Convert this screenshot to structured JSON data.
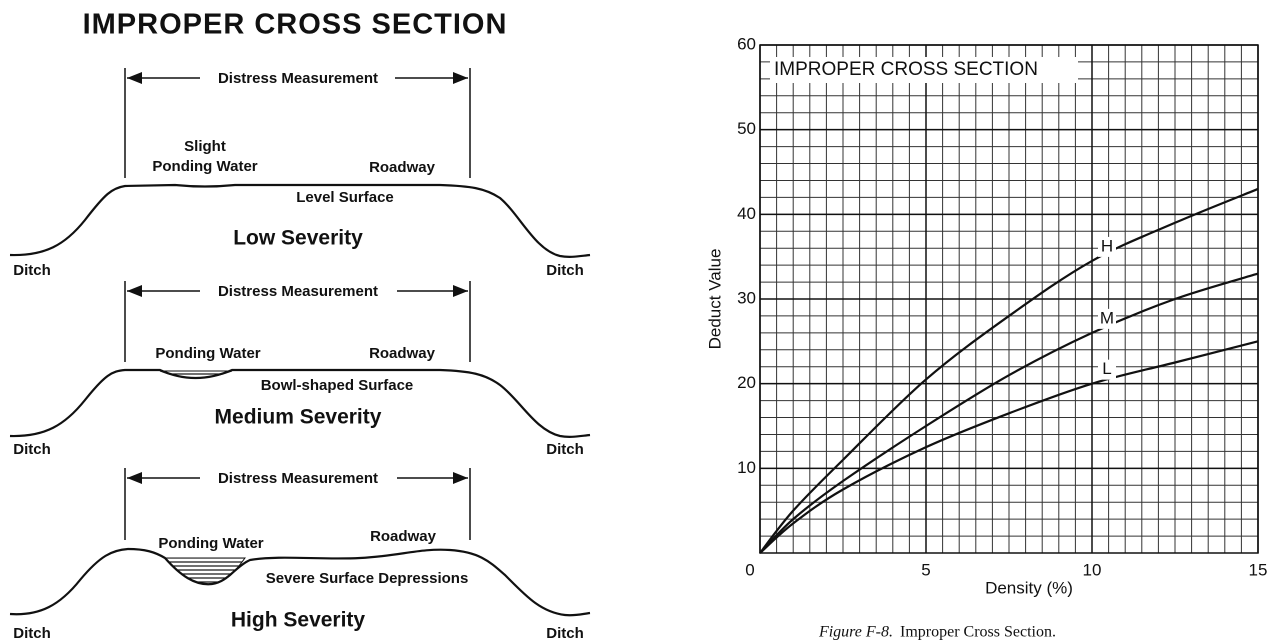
{
  "diagram": {
    "title": "IMPROPER CROSS SECTION",
    "panels": [
      {
        "measurement": "Distress Measurement",
        "labels": [
          "Slight",
          "Ponding Water",
          "Roadway",
          "Level Surface"
        ],
        "severity": "Low Severity",
        "ditch_left": "Ditch",
        "ditch_right": "Ditch"
      },
      {
        "measurement": "Distress Measurement",
        "labels": [
          "Ponding Water",
          "Roadway",
          "Bowl-shaped Surface"
        ],
        "severity": "Medium Severity",
        "ditch_left": "Ditch",
        "ditch_right": "Ditch"
      },
      {
        "measurement": "Distress Measurement",
        "labels": [
          "Ponding Water",
          "Roadway",
          "Severe Surface Depressions"
        ],
        "severity": "High Severity",
        "ditch_left": "Ditch",
        "ditch_right": "Ditch"
      }
    ]
  },
  "chart_data": {
    "type": "line",
    "title": "IMPROPER CROSS SECTION",
    "x_label": "Density (%)",
    "y_label": "Deduct Value",
    "caption_label": "Figure F-8.",
    "caption": "Improper Cross Section.",
    "x": [
      0,
      1,
      2.5,
      5,
      7.5,
      10,
      12.5,
      15
    ],
    "series": [
      {
        "name": "H",
        "color": "#111111",
        "values": [
          0,
          5,
          11,
          20.5,
          28,
          34.5,
          39,
          43
        ]
      },
      {
        "name": "M",
        "color": "#111111",
        "values": [
          0,
          4,
          8.5,
          15,
          21,
          26,
          30,
          33
        ]
      },
      {
        "name": "L",
        "color": "#111111",
        "values": [
          0,
          3.5,
          7.5,
          12.5,
          16.5,
          20,
          22.5,
          25
        ]
      }
    ],
    "xlim": [
      0,
      15
    ],
    "ylim": [
      0,
      60
    ],
    "xticks": [
      0,
      5,
      10,
      15
    ],
    "yticks": [
      10,
      20,
      30,
      40,
      50,
      60
    ],
    "grid": true,
    "minor_grid": {
      "x": 0.5,
      "y": 2
    }
  }
}
